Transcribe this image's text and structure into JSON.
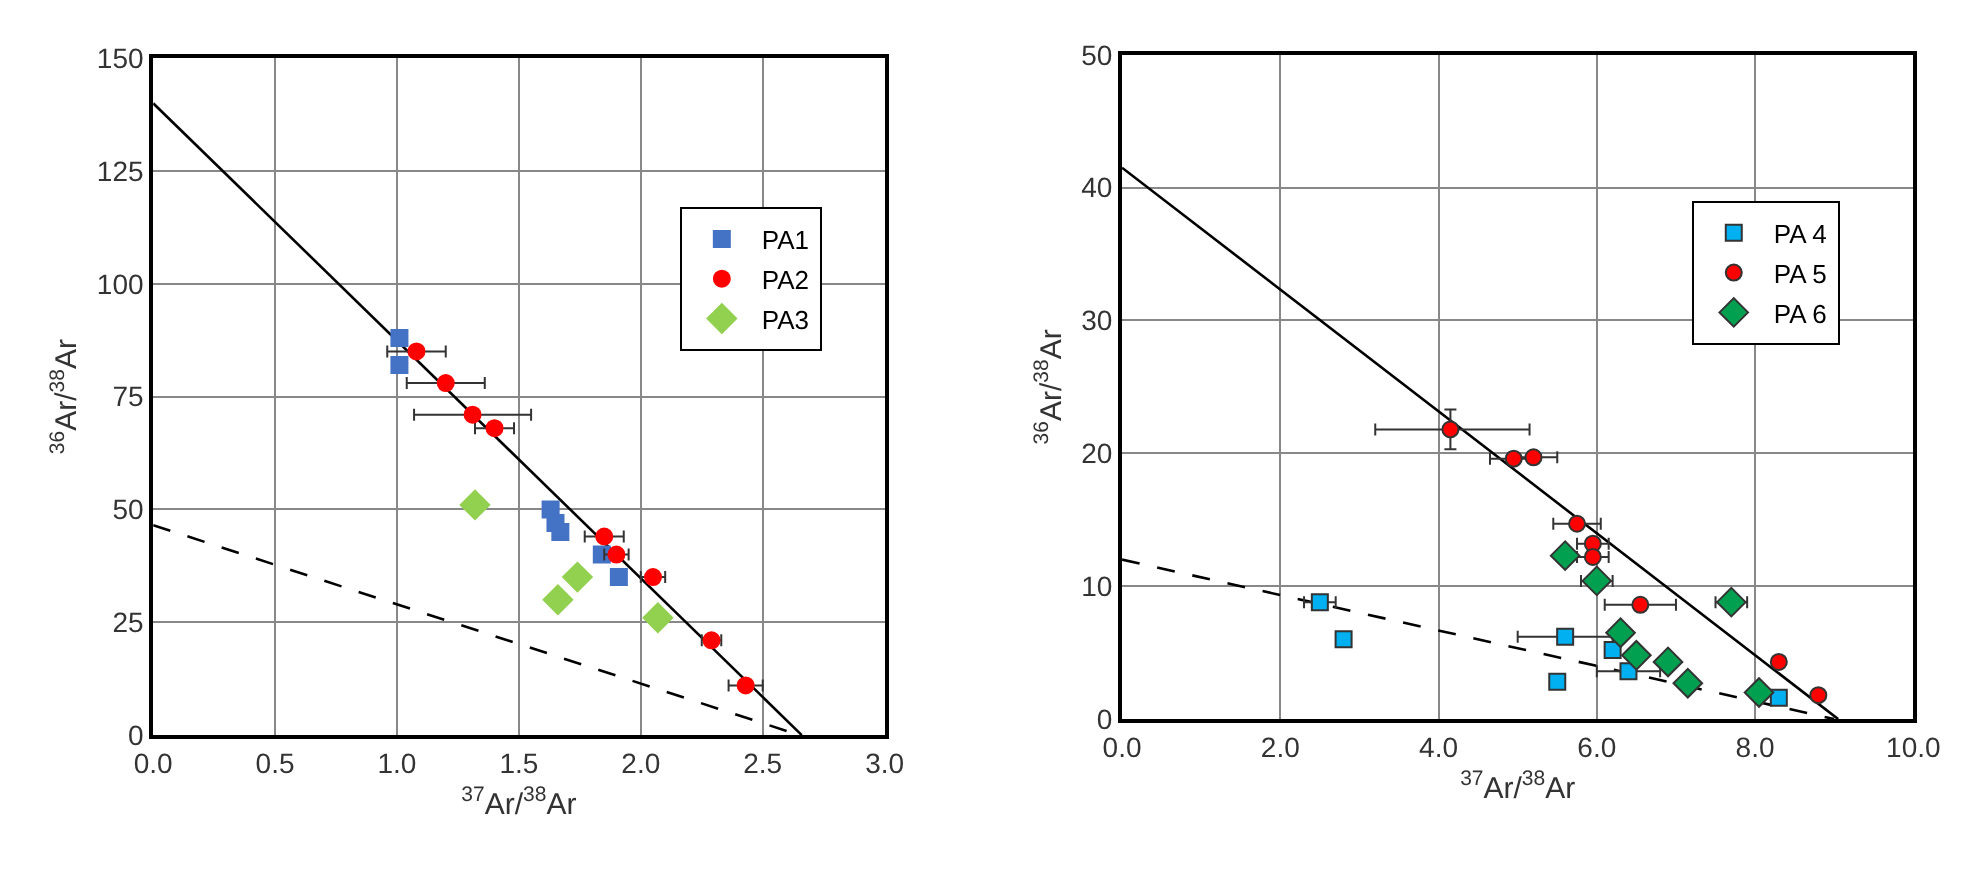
{
  "chart_data": [
    {
      "type": "scatter",
      "xlabel": "$^{37}$Ar/$^{38}$Ar",
      "ylabel": "$^{36}$Ar/$^{38}$Ar",
      "xlim": [
        0,
        3
      ],
      "ylim": [
        0,
        150
      ],
      "xticks": [
        {
          "value": 0,
          "label": "0.0"
        },
        {
          "value": 0.5,
          "label": "0.5"
        },
        {
          "value": 1,
          "label": "1.0"
        },
        {
          "value": 1.5,
          "label": "1.5"
        },
        {
          "value": 2,
          "label": "2.0"
        },
        {
          "value": 2.5,
          "label": "2.5"
        },
        {
          "value": 3,
          "label": "3.0"
        }
      ],
      "yticks": [
        0,
        25,
        50,
        75,
        100,
        125,
        150
      ],
      "grid": true,
      "legend": "top right",
      "series": [
        {
          "type": "line",
          "x": [
            0,
            2.66
          ],
          "values": [
            140,
            0
          ],
          "color": "#000000",
          "line_style": "solid",
          "marker": "none"
        },
        {
          "type": "line",
          "x": [
            0,
            2.65
          ],
          "values": [
            46.5,
            0
          ],
          "color": "#000000",
          "line_style": "dashed",
          "marker": "none"
        },
        {
          "name": "PA1",
          "color": "#4472c4",
          "marker": "square",
          "x": [
            1.01,
            1.01,
            1.63,
            1.65,
            1.67,
            1.84,
            1.91
          ],
          "values": [
            88,
            82,
            50,
            47,
            45,
            40,
            35
          ]
        },
        {
          "name": "PA2",
          "color": "#ff0000",
          "marker": "circle",
          "x": [
            1.08,
            1.2,
            1.31,
            1.4,
            1.85,
            1.9,
            2.05,
            2.29,
            2.43
          ],
          "values": [
            85,
            78,
            71,
            68,
            44,
            40,
            35,
            21,
            11
          ],
          "xerrors": [
            0.12,
            0.16,
            0.24,
            0.08,
            0.08,
            0.05,
            0.05,
            0.04,
            0.07
          ]
        },
        {
          "name": "PA3",
          "color": "#92d050",
          "marker": "diamond",
          "x": [
            1.32,
            1.66,
            1.74,
            2.07
          ],
          "values": [
            51,
            30,
            35,
            26
          ]
        }
      ]
    },
    {
      "type": "scatter",
      "xlabel": "$^{37}$Ar/$^{38}$Ar",
      "ylabel": "$^{36}$Ar/$^{38}$Ar",
      "xlim": [
        0,
        10
      ],
      "ylim": [
        0,
        50
      ],
      "xticks": [
        {
          "value": 0,
          "label": "0.0"
        },
        {
          "value": 2,
          "label": "2.0"
        },
        {
          "value": 4,
          "label": "4.0"
        },
        {
          "value": 6,
          "label": "6.0"
        },
        {
          "value": 8,
          "label": "8.0"
        },
        {
          "value": 10,
          "label": "10.0"
        }
      ],
      "yticks": [
        0,
        10,
        20,
        30,
        40,
        50
      ],
      "grid": true,
      "legend": "top right",
      "series": [
        {
          "type": "line",
          "x": [
            0,
            9.05
          ],
          "values": [
            41.5,
            0
          ],
          "color": "#000000",
          "line_style": "solid",
          "marker": "none"
        },
        {
          "type": "line",
          "x": [
            0,
            9.0
          ],
          "values": [
            12,
            0
          ],
          "color": "#000000",
          "line_style": "dashed",
          "marker": "none"
        },
        {
          "name": "PA 4",
          "color": "#00b0f0",
          "marker": "square",
          "x": [
            2.5,
            2.8,
            5.6,
            6.2,
            6.4,
            5.5,
            8.3
          ],
          "values": [
            8.8,
            6,
            6.2,
            5.2,
            3.6,
            2.8,
            1.6
          ],
          "xerrors": [
            0.2,
            null,
            0.6,
            null,
            0.4,
            null,
            null
          ]
        },
        {
          "name": "PA 5",
          "color": "#ff0000",
          "marker": "circle",
          "x": [
            4.15,
            4.95,
            5.2,
            5.75,
            5.95,
            5.95,
            6.55,
            8.3,
            8.8
          ],
          "values": [
            21.8,
            19.6,
            19.7,
            14.7,
            13.2,
            12.2,
            8.6,
            4.3,
            1.8
          ],
          "xerrors": [
            [
              3.2,
              5.15
            ],
            0.3,
            0.3,
            0.3,
            0.2,
            0.2,
            0.45,
            null,
            null
          ],
          "errors": [
            1.5,
            null,
            null,
            null,
            null,
            null,
            null,
            null,
            null
          ]
        },
        {
          "name": "PA 6",
          "color": "#00a050",
          "marker": "diamond",
          "x": [
            5.6,
            6.0,
            6.3,
            6.5,
            6.9,
            7.15,
            7.7,
            8.05
          ],
          "values": [
            12.3,
            10.4,
            6.5,
            4.8,
            4.3,
            2.7,
            8.8,
            2.0
          ],
          "xerrors": [
            null,
            0.2,
            null,
            null,
            null,
            null,
            0.2,
            null
          ]
        }
      ]
    }
  ]
}
